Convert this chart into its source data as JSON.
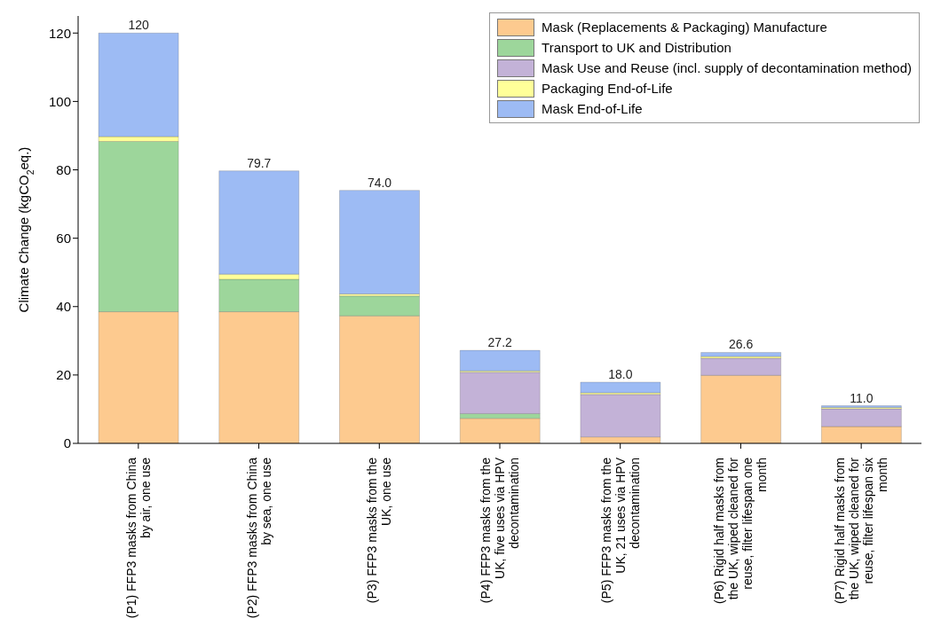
{
  "chart_data": {
    "type": "bar",
    "stacked": true,
    "ylabel": "Climate Change (kgCO$_{2}$eq.)",
    "categories": [
      "(P1) FFP3 masks from China by air, one use",
      "(P2) FFP3 masks from China by sea, one use",
      "(P3) FFP3 masks from the UK, one use",
      "(P4) FFP3 masks from the UK, five uses via HPV decontamination",
      "(P5) FFP3 masks from the UK, 21 uses via HPV decontamination",
      "(P6) Rigid half masks from the UK, wiped cleaned for reuse, filter lifespan one month",
      "(P7) Rigid half masks from the UK, wiped cleaned for reuse, filter lifespan six month"
    ],
    "series": [
      {
        "name": "Mask (Replacements & Packaging) Manufacture",
        "color": "#fdca8f",
        "values": [
          38.5,
          38.5,
          37.3,
          7.3,
          1.9,
          19.9,
          4.9
        ]
      },
      {
        "name": "Transport to UK and Distribution",
        "color": "#9dd69b",
        "values": [
          49.8,
          9.5,
          5.8,
          1.4,
          null,
          0,
          0
        ]
      },
      {
        "name": "Mask Use and Reuse (incl. supply of decontamination method)",
        "color": "#c3b2d7",
        "values": [
          0,
          0,
          0,
          12.1,
          12.4,
          5.0,
          5.2
        ]
      },
      {
        "name": "Packaging End-of-Life",
        "color": "#ffff99",
        "values": [
          1.4,
          1.5,
          0.6,
          0.4,
          0.5,
          0.5,
          0.4
        ]
      },
      {
        "name": "Mask End-of-Life",
        "color": "#9dbbf4",
        "values": [
          30.3,
          30.2,
          30.3,
          6.0,
          3.1,
          1.2,
          0.5
        ]
      }
    ],
    "totals": [
      "120",
      "79.7",
      "74.0",
      "27.2",
      "18.0",
      "26.6",
      "11.0"
    ],
    "ylim": [
      0,
      125
    ],
    "yticks": [
      0,
      20,
      40,
      60,
      80,
      100,
      120
    ],
    "grid": false,
    "legend": "top right"
  }
}
